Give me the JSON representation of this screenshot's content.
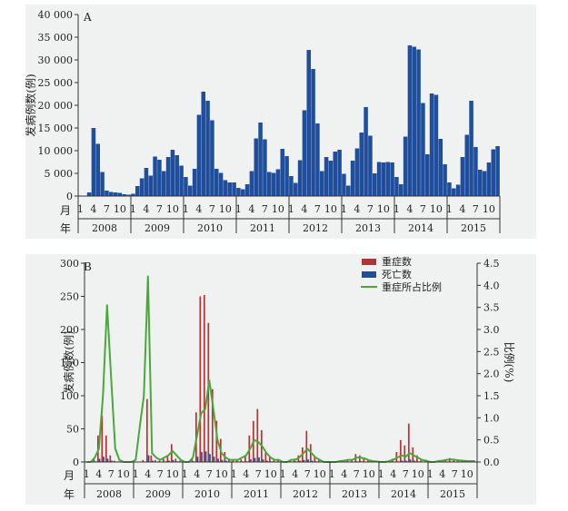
{
  "chart_data": [
    {
      "panel_label": "A",
      "type": "bar",
      "ylabel": "发病例数(例)",
      "ylim": [
        0,
        40000
      ],
      "ytick_labels": [
        "0",
        "5 000",
        "10 000",
        "15 000",
        "20 000",
        "25 000",
        "30 000",
        "35 000",
        "40 000"
      ],
      "month_axis_label": "月",
      "year_axis_label": "年",
      "month_tick_labels": [
        "1",
        "4",
        "7",
        "10"
      ],
      "years": [
        "2008",
        "2009",
        "2010",
        "2011",
        "2012",
        "2013",
        "2014",
        "2015"
      ],
      "colors": {
        "cases": "#1f4e9c"
      },
      "series": [
        {
          "values": [
            0,
            0,
            800,
            15000,
            11500,
            5300,
            1200,
            900,
            800,
            700,
            400,
            300,
            500,
            2200,
            3900,
            6200,
            4500,
            8700,
            8000,
            5500,
            8600,
            10200,
            9000,
            6700,
            4200,
            2300,
            6000,
            17900,
            23000,
            21000,
            16700,
            6000,
            5100,
            3500,
            3000,
            3000,
            1800,
            1500,
            2600,
            5500,
            12700,
            16200,
            12500,
            5300,
            5100,
            5900,
            10400,
            8800,
            4400,
            2900,
            7900,
            18900,
            32200,
            28000,
            16000,
            5500,
            8600,
            7800,
            9800,
            10200,
            4900,
            2300,
            7800,
            10500,
            14000,
            19600,
            13300,
            5000,
            7500,
            7400,
            7500,
            7400,
            4200,
            2600,
            13100,
            33200,
            32900,
            32300,
            20500,
            9200,
            22600,
            22300,
            12600,
            7000,
            3000,
            1700,
            2500,
            8600,
            13500,
            21000,
            10800,
            5800,
            5500,
            7400,
            10300,
            11000
          ]
        }
      ]
    },
    {
      "panel_label": "B",
      "type": "bar",
      "ylabel": "发病例数(例)",
      "ylabel_right": "比例(%)",
      "ylim": [
        0,
        300
      ],
      "ylim_right": [
        0,
        4.5
      ],
      "ytick_labels": [
        "0",
        "50",
        "100",
        "150",
        "200",
        "250",
        "300"
      ],
      "ytick_labels_right": [
        "0.0",
        "0.5",
        "1.0",
        "1.5",
        "2.0",
        "2.5",
        "3.0",
        "3.5",
        "4.0",
        "4.5"
      ],
      "month_axis_label": "月",
      "year_axis_label": "年",
      "month_tick_labels": [
        "1",
        "4",
        "7",
        "10"
      ],
      "years": [
        "2008",
        "2009",
        "2010",
        "2011",
        "2012",
        "2013",
        "2014",
        "2015"
      ],
      "legend_position": "top-right",
      "legend": [
        "重症数",
        "死亡数",
        "重症所占比例"
      ],
      "colors": {
        "severe": "#b83232",
        "death": "#1f4e9c",
        "ratio": "#4aa83a"
      },
      "series": [
        {
          "name": "重症数",
          "values": [
            0,
            0,
            5,
            40,
            70,
            40,
            10,
            2,
            1,
            0,
            0,
            0,
            0,
            0,
            3,
            95,
            10,
            3,
            2,
            5,
            10,
            27,
            5,
            2,
            0,
            0,
            5,
            75,
            250,
            252,
            210,
            110,
            62,
            35,
            15,
            5,
            2,
            2,
            4,
            10,
            40,
            62,
            80,
            48,
            14,
            8,
            4,
            2,
            1,
            1,
            2,
            5,
            10,
            22,
            47,
            27,
            8,
            3,
            2,
            1,
            0,
            0,
            1,
            2,
            3,
            4,
            12,
            10,
            6,
            3,
            1,
            1,
            0,
            0,
            1,
            5,
            15,
            33,
            25,
            58,
            22,
            10,
            3,
            2,
            0,
            0,
            1,
            2,
            3,
            6,
            5,
            3,
            2,
            1,
            1,
            1
          ]
        },
        {
          "name": "死亡数",
          "values": [
            0,
            0,
            1,
            5,
            8,
            5,
            2,
            0,
            0,
            0,
            0,
            0,
            0,
            0,
            0,
            10,
            2,
            0,
            0,
            1,
            2,
            3,
            1,
            0,
            0,
            0,
            1,
            8,
            15,
            16,
            12,
            8,
            5,
            3,
            2,
            1,
            0,
            0,
            0,
            1,
            4,
            6,
            7,
            4,
            2,
            1,
            0,
            0,
            0,
            0,
            0,
            1,
            2,
            3,
            4,
            2,
            1,
            0,
            0,
            0,
            0,
            0,
            0,
            0,
            0,
            0,
            1,
            1,
            0,
            0,
            0,
            0,
            0,
            0,
            0,
            0,
            1,
            2,
            2,
            4,
            2,
            1,
            0,
            0,
            0,
            0,
            0,
            0,
            0,
            0,
            0,
            0,
            0,
            0,
            0,
            0
          ]
        },
        {
          "name": "重症所占比例",
          "values": [
            0.0,
            0.0,
            0.1,
            0.3,
            1.5,
            3.55,
            1.9,
            0.3,
            0.05,
            0.0,
            0.0,
            0.0,
            0.05,
            0.8,
            1.5,
            4.2,
            0.2,
            0.1,
            0.05,
            0.1,
            0.15,
            0.25,
            0.15,
            0.05,
            0.0,
            0.0,
            0.1,
            0.6,
            1.1,
            1.2,
            1.85,
            1.2,
            0.5,
            0.2,
            0.1,
            0.05,
            0.05,
            0.05,
            0.1,
            0.15,
            0.3,
            0.5,
            0.45,
            0.35,
            0.2,
            0.1,
            0.05,
            0.05,
            0.0,
            0.0,
            0.05,
            0.05,
            0.1,
            0.2,
            0.3,
            0.2,
            0.1,
            0.05,
            0.0,
            0.0,
            0.0,
            0.0,
            0.02,
            0.03,
            0.05,
            0.05,
            0.1,
            0.1,
            0.08,
            0.04,
            0.02,
            0.01,
            0.0,
            0.0,
            0.02,
            0.05,
            0.1,
            0.15,
            0.12,
            0.2,
            0.15,
            0.1,
            0.05,
            0.03,
            0.0,
            0.0,
            0.02,
            0.03,
            0.05,
            0.06,
            0.05,
            0.04,
            0.03,
            0.02,
            0.02,
            0.02
          ]
        }
      ]
    }
  ]
}
